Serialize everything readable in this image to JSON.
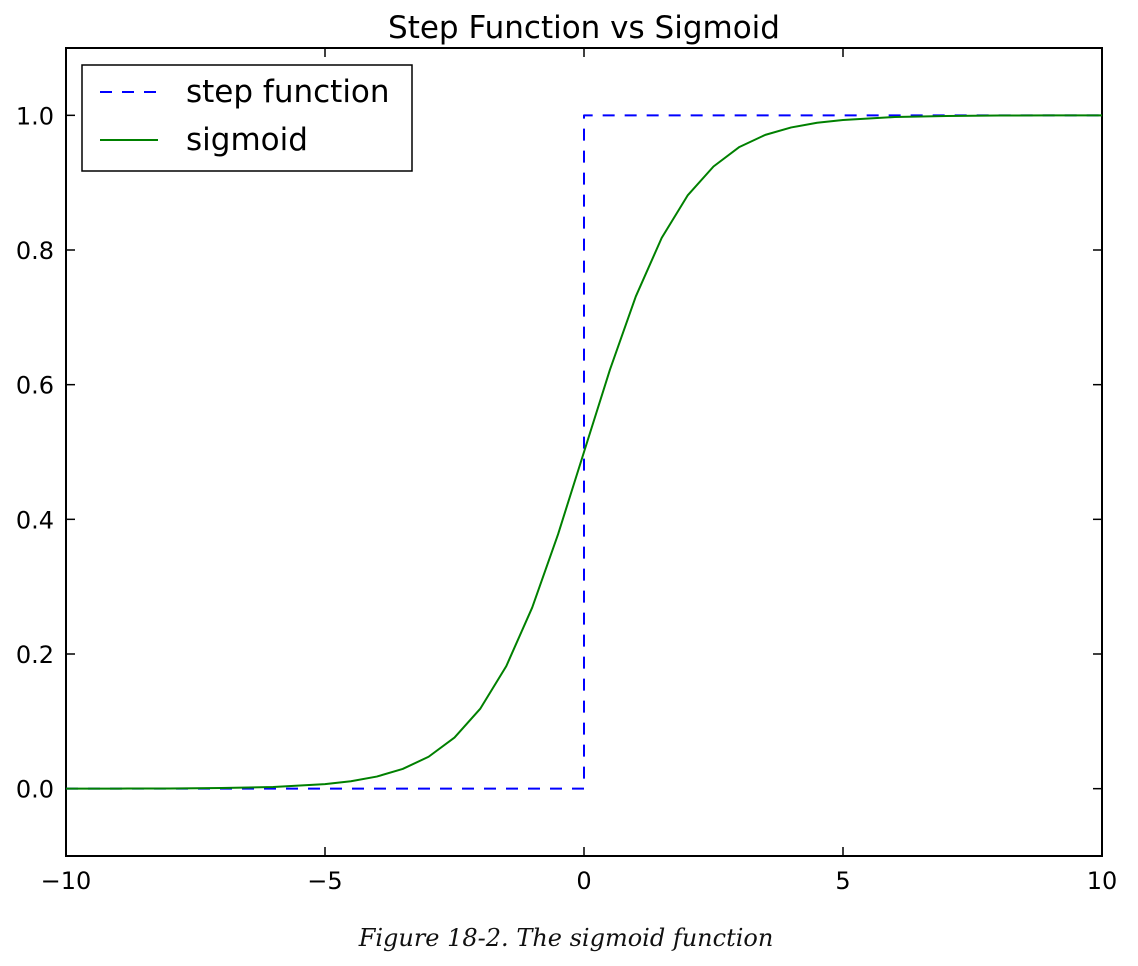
{
  "chart_data": {
    "type": "line",
    "title": "Step Function vs Sigmoid",
    "xlabel": "",
    "ylabel": "",
    "xlim": [
      -10,
      10
    ],
    "ylim": [
      -0.1,
      1.1
    ],
    "x_ticks": [
      -10,
      -5,
      0,
      5,
      10
    ],
    "x_tick_labels": [
      "−10",
      "−5",
      "0",
      "5",
      "10"
    ],
    "y_ticks": [
      0.0,
      0.2,
      0.4,
      0.6,
      0.8,
      1.0
    ],
    "y_tick_labels": [
      "0.0",
      "0.2",
      "0.4",
      "0.6",
      "0.8",
      "1.0"
    ],
    "grid": false,
    "legend_position": "top-left",
    "series": [
      {
        "name": "step function",
        "style": "dashed",
        "color": "#0000ff",
        "x": [
          -10,
          0,
          0,
          10
        ],
        "y": [
          0,
          0,
          1,
          1
        ]
      },
      {
        "name": "sigmoid",
        "style": "solid",
        "color": "#008000",
        "x": [
          -10,
          -9,
          -8,
          -7,
          -6,
          -5,
          -4.5,
          -4,
          -3.5,
          -3,
          -2.5,
          -2,
          -1.5,
          -1,
          -0.5,
          0,
          0.5,
          1,
          1.5,
          2,
          2.5,
          3,
          3.5,
          4,
          4.5,
          5,
          6,
          7,
          8,
          9,
          10
        ],
        "y": [
          4.54e-05,
          0.000123,
          0.000335,
          0.000911,
          0.00247,
          0.00669,
          0.011,
          0.018,
          0.0293,
          0.0474,
          0.0759,
          0.119,
          0.182,
          0.269,
          0.378,
          0.5,
          0.622,
          0.731,
          0.818,
          0.881,
          0.924,
          0.953,
          0.971,
          0.982,
          0.989,
          0.993,
          0.9975,
          0.9991,
          0.99966,
          0.99988,
          0.99995
        ]
      }
    ]
  },
  "caption": "Figure 18-2. The sigmoid function"
}
